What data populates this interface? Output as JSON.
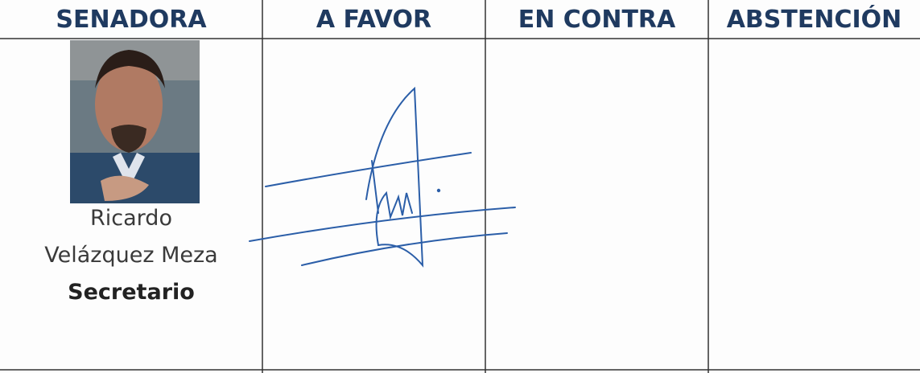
{
  "table": {
    "headers": [
      "SENADORA",
      "A FAVOR",
      "EN CONTRA",
      "ABSTENCIÓN"
    ],
    "rows": [
      {
        "name": [
          "Ricardo",
          "Velázquez Meza"
        ],
        "role": "Secretario"
      }
    ]
  }
}
